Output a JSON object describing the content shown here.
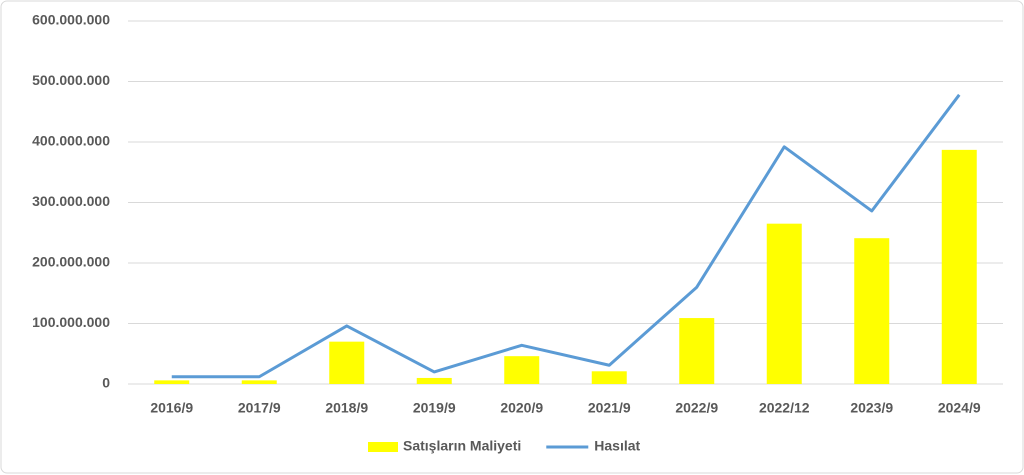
{
  "chart_data": {
    "type": "combo",
    "categories": [
      "2016/9",
      "2017/9",
      "2018/9",
      "2019/9",
      "2020/9",
      "2021/9",
      "2022/9",
      "2022/12",
      "2023/9",
      "2024/9"
    ],
    "series": [
      {
        "name": "Satışların Maliyeti",
        "type": "bar",
        "color": "#ffff00",
        "values": [
          6000000,
          6000000,
          70000000,
          10000000,
          46000000,
          21000000,
          109000000,
          265000000,
          241000000,
          387000000
        ]
      },
      {
        "name": "Hasılat",
        "type": "line",
        "color": "#5b9bd5",
        "values": [
          12000000,
          12000000,
          96000000,
          20000000,
          64000000,
          31000000,
          160000000,
          392000000,
          286000000,
          478000000
        ]
      }
    ],
    "ylim": [
      0,
      600000000
    ],
    "yticks": [
      0,
      {
        "value": 100000000,
        "label": "100.000.000"
      },
      {
        "value": 200000000,
        "label": "200.000.000"
      },
      {
        "value": 300000000,
        "label": "300.000.000"
      },
      {
        "value": 400000000,
        "label": "400.000.000"
      },
      {
        "value": 500000000,
        "label": "500.000.000"
      },
      {
        "value": 600000000,
        "label": "600.000.000"
      }
    ],
    "grid": true,
    "legend": "bottom"
  }
}
